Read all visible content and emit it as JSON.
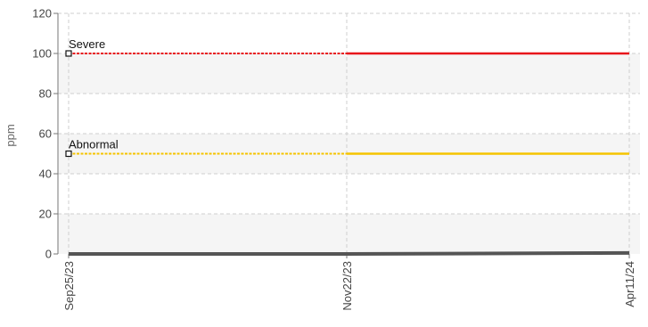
{
  "chart_data": {
    "type": "line",
    "ylabel": "ppm",
    "ylim": [
      0,
      120
    ],
    "y_ticks": [
      "120",
      "100",
      "80",
      "60",
      "40",
      "20",
      "0"
    ],
    "x_ticks": [
      "Sep25/23",
      "Nov22/23",
      "Apr11/24"
    ],
    "grid": true,
    "colors": {
      "severe": "#e8161b",
      "abnormal": "#f5c400",
      "measured": "#555555",
      "grid": "#cfcfcf",
      "band": "#f5f5f5"
    },
    "thresholds": [
      {
        "label": "Severe",
        "value": 100,
        "color": "#e8161b"
      },
      {
        "label": "Abnormal",
        "value": 50,
        "color": "#f5c400"
      }
    ],
    "series": [
      {
        "x": [
          "Sep25/23",
          "Nov22/23",
          "Apr11/24"
        ],
        "values": [
          0,
          0,
          0.5
        ],
        "color": "#555555"
      }
    ]
  }
}
